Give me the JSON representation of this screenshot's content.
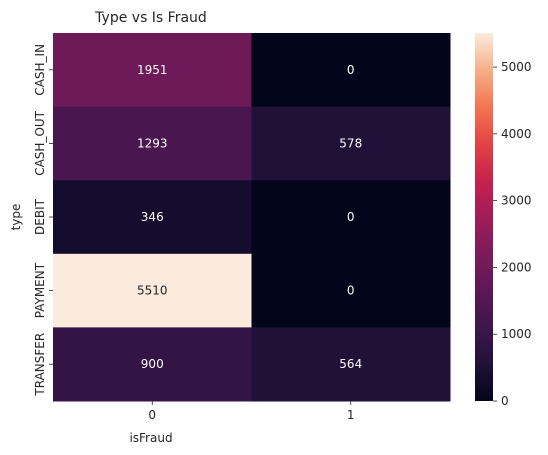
{
  "chart_data": {
    "type": "heatmap",
    "title": "Type vs Is Fraud",
    "xlabel": "isFraud",
    "ylabel": "type",
    "x_categories": [
      "0",
      "1"
    ],
    "y_categories": [
      "CASH_IN",
      "CASH_OUT",
      "DEBIT",
      "PAYMENT",
      "TRANSFER"
    ],
    "values": [
      [
        1951,
        0
      ],
      [
        1293,
        578
      ],
      [
        346,
        0
      ],
      [
        5510,
        0
      ],
      [
        900,
        564
      ]
    ],
    "colorbar": {
      "colormap": "rocket",
      "vmin": 0,
      "vmax": 5510,
      "ticks": [
        0,
        1000,
        2000,
        3000,
        4000,
        5000
      ]
    },
    "annotations": true
  }
}
